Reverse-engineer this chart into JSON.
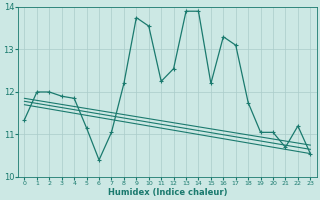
{
  "xlabel": "Humidex (Indice chaleur)",
  "background_color": "#cce8e4",
  "grid_color": "#aaccca",
  "line_color": "#1a7a6e",
  "xlim": [
    -0.5,
    23.5
  ],
  "ylim": [
    10.0,
    14.0
  ],
  "x_ticks": [
    0,
    1,
    2,
    3,
    4,
    5,
    6,
    7,
    8,
    9,
    10,
    11,
    12,
    13,
    14,
    15,
    16,
    17,
    18,
    19,
    20,
    21,
    22,
    23
  ],
  "y_ticks": [
    10,
    11,
    12,
    13,
    14
  ],
  "line1_y": [
    11.35,
    12.0,
    12.0,
    11.9,
    11.85,
    11.15,
    10.4,
    11.05,
    12.2,
    13.75,
    13.55,
    12.25,
    12.55,
    13.9,
    13.9,
    12.2,
    13.3,
    13.1,
    11.75,
    11.05,
    11.05,
    10.7,
    11.2,
    10.55
  ],
  "trend1_start": 11.85,
  "trend1_end": 10.75,
  "trend2_start": 11.78,
  "trend2_end": 10.65,
  "trend3_start": 11.7,
  "trend3_end": 10.55
}
